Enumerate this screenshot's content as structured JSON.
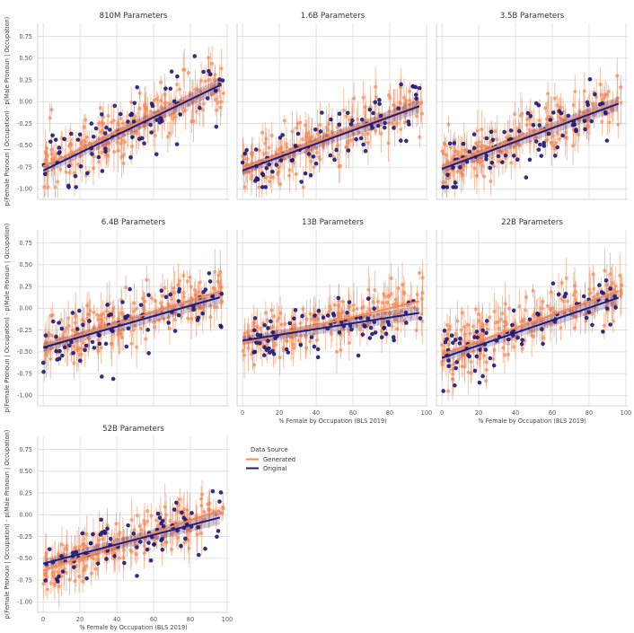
{
  "chart_data": {
    "type": "scatter",
    "description_of_panels": "7 faceted regression scatter plots",
    "x_label": "% Female by Occupation (BLS 2019)",
    "y_label": "p(Female Pronoun | Occupation) - p(Male Pronoun | Occupation)",
    "x_ticks": [
      "0",
      "20",
      "40",
      "60",
      "80",
      "100"
    ],
    "y_ticks": [
      "0.75",
      "0.50",
      "0.25",
      "0.00",
      "-0.25",
      "-0.50",
      "-0.75",
      "-1.00"
    ],
    "xlim": [
      -3,
      101
    ],
    "ylim": [
      -1.12,
      0.9
    ],
    "legend": {
      "title": "Data Source",
      "entries": [
        {
          "label": "Generated",
          "color": "#f08a5a"
        },
        {
          "label": "Original",
          "color": "#1f1c7a"
        }
      ]
    },
    "panels": [
      {
        "title": "810M Parameters",
        "generated_fit": {
          "intercept": -0.74,
          "slope": 0.0097
        },
        "original_fit": {
          "intercept": -0.79,
          "slope": 0.0102
        },
        "generated_spread": 0.17,
        "original_spread": 0.2,
        "seed": 11
      },
      {
        "title": "1.6B Parameters",
        "generated_fit": {
          "intercept": -0.76,
          "slope": 0.0075
        },
        "original_fit": {
          "intercept": -0.79,
          "slope": 0.0077
        },
        "generated_spread": 0.15,
        "original_spread": 0.2,
        "seed": 23
      },
      {
        "title": "3.5B Parameters",
        "generated_fit": {
          "intercept": -0.74,
          "slope": 0.0076
        },
        "original_fit": {
          "intercept": -0.77,
          "slope": 0.0078
        },
        "generated_spread": 0.15,
        "original_spread": 0.2,
        "seed": 37
      },
      {
        "title": "6.4B Parameters",
        "generated_fit": {
          "intercept": -0.44,
          "slope": 0.0066
        },
        "original_fit": {
          "intercept": -0.45,
          "slope": 0.006
        },
        "generated_spread": 0.15,
        "original_spread": 0.18,
        "seed": 41
      },
      {
        "title": "13B Parameters",
        "generated_fit": {
          "intercept": -0.4,
          "slope": 0.005
        },
        "original_fit": {
          "intercept": -0.37,
          "slope": 0.0033
        },
        "generated_spread": 0.14,
        "original_spread": 0.15,
        "seed": 53
      },
      {
        "title": "22B Parameters",
        "generated_fit": {
          "intercept": -0.53,
          "slope": 0.0076
        },
        "original_fit": {
          "intercept": -0.57,
          "slope": 0.0072
        },
        "generated_spread": 0.14,
        "original_spread": 0.18,
        "seed": 67
      },
      {
        "title": "52B Parameters",
        "generated_fit": {
          "intercept": -0.64,
          "slope": 0.0072
        },
        "original_fit": {
          "intercept": -0.56,
          "slope": 0.0055
        },
        "generated_spread": 0.13,
        "original_spread": 0.16,
        "seed": 79
      }
    ],
    "points_per_panel": {
      "generated": 220,
      "original": 80
    }
  }
}
